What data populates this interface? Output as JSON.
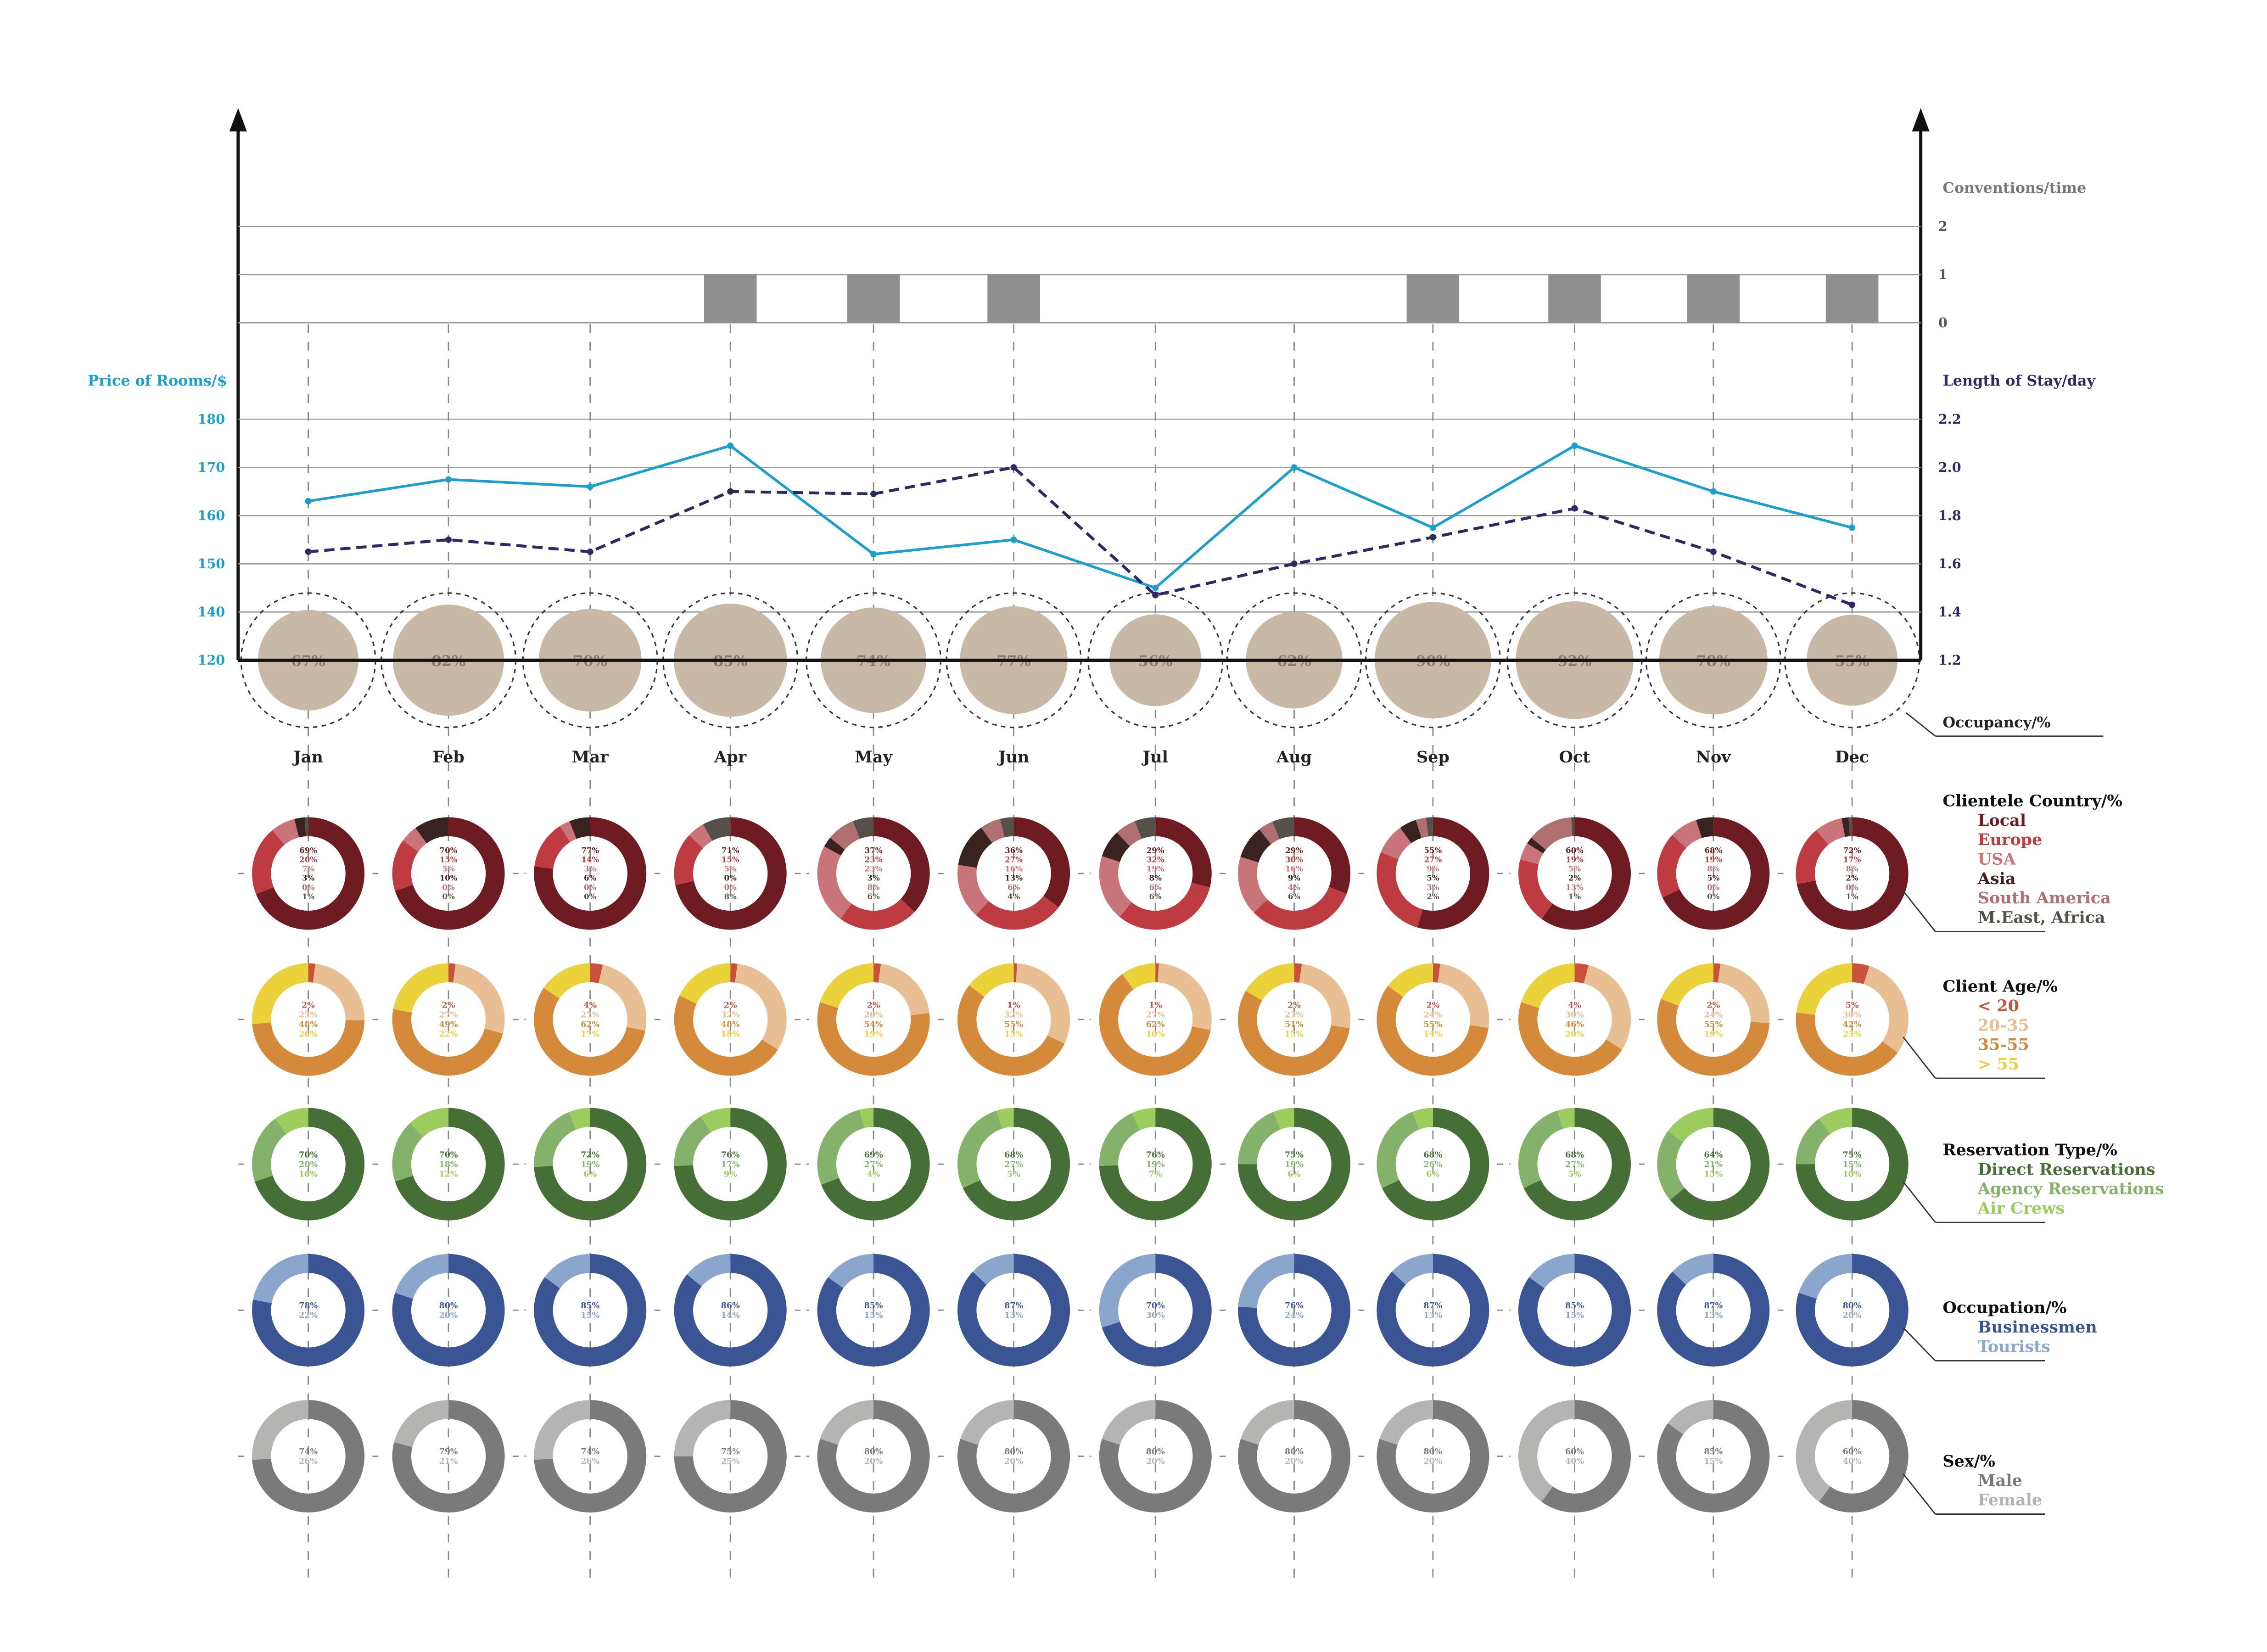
{
  "colors": {
    "price": "#1a9fcf",
    "stay": "#2a2a66",
    "conventions": "#8f8f8f",
    "occupancy": "#c8b9a6",
    "axis": "#111111",
    "label_gray": "#777777",
    "country": [
      "#6e1c22",
      "#bf3b42",
      "#c97479",
      "#3a2220",
      "#b07070",
      "#55504a"
    ],
    "age": [
      "#c9533a",
      "#e8bf92",
      "#d48a3a",
      "#ecd23a"
    ],
    "reservation": [
      "#466e37",
      "#84b26a",
      "#9ccc5e"
    ],
    "occupation": [
      "#3b5494",
      "#8aa6cc"
    ],
    "sex": [
      "#7a7a7a",
      "#b4b4b2"
    ]
  },
  "chart_data": {
    "type": "line",
    "categories": [
      "Jan",
      "Feb",
      "Mar",
      "Apr",
      "May",
      "Jun",
      "Jul",
      "Aug",
      "Sep",
      "Oct",
      "Nov",
      "Dec"
    ],
    "conventions": {
      "label": "Conventions/time",
      "ticks": [
        "2",
        "1",
        "0"
      ],
      "values": [
        0,
        0,
        0,
        1,
        1,
        1,
        0,
        0,
        1,
        1,
        1,
        1
      ]
    },
    "price": {
      "label": "Price of Rooms/$",
      "ticks": [
        "180",
        "170",
        "160",
        "150",
        "140",
        "120"
      ],
      "values": [
        163,
        167.5,
        166,
        174.5,
        152,
        155,
        145,
        170,
        157.5,
        174.5,
        165,
        157.5
      ]
    },
    "stay": {
      "label": "Length of Stay/day",
      "ticks": [
        "2.2",
        "2.0",
        "1.8",
        "1.6",
        "1.4",
        "1.2"
      ],
      "values": [
        1.65,
        1.7,
        1.65,
        1.9,
        1.89,
        2.0,
        1.47,
        1.6,
        1.71,
        1.83,
        1.65,
        1.43
      ]
    },
    "occupancy": {
      "label": "Occupancy/%",
      "values": [
        67,
        82,
        70,
        85,
        74,
        77,
        56,
        62,
        90,
        92,
        78,
        55
      ],
      "texts": [
        "67%",
        "82%",
        "70%",
        "85%",
        "74%",
        "77%",
        "56%",
        "62%",
        "90%",
        "92%",
        "78%",
        "55%"
      ]
    },
    "country": {
      "label": "Clientele Country/%",
      "legend": [
        "Local",
        "Europe",
        "USA",
        "Asia",
        "South America",
        "M.East, Africa"
      ],
      "values": [
        [
          69,
          20,
          7,
          3,
          0,
          1
        ],
        [
          70,
          15,
          5,
          10,
          0,
          0
        ],
        [
          77,
          14,
          3,
          6,
          0,
          0
        ],
        [
          71,
          15,
          5,
          0,
          0,
          8
        ],
        [
          37,
          23,
          23,
          3,
          8,
          6
        ],
        [
          36,
          27,
          16,
          13,
          6,
          4
        ],
        [
          29,
          32,
          19,
          8,
          6,
          6
        ],
        [
          29,
          30,
          16,
          9,
          4,
          6
        ],
        [
          55,
          27,
          9,
          5,
          3,
          2
        ],
        [
          60,
          19,
          5,
          2,
          13,
          1
        ],
        [
          68,
          19,
          8,
          5,
          0,
          0
        ],
        [
          72,
          17,
          8,
          2,
          0,
          1
        ]
      ],
      "texts": [
        [
          "69%",
          "20%",
          "7%",
          "3%",
          "0%",
          "1%"
        ],
        [
          "70%",
          "15%",
          "5%",
          "10%",
          "0%",
          "0%"
        ],
        [
          "77%",
          "14%",
          "3%",
          "6%",
          "0%",
          "0%"
        ],
        [
          "71%",
          "15%",
          "5%",
          "0%",
          "0%",
          "8%"
        ],
        [
          "37%",
          "23%",
          "23%",
          "3%",
          "8%",
          "6%"
        ],
        [
          "36%",
          "27%",
          "16%",
          "13%",
          "6%",
          "4%"
        ],
        [
          "29%",
          "32%",
          "19%",
          "8%",
          "6%",
          "6%"
        ],
        [
          "29%",
          "30%",
          "16%",
          "9%",
          "4%",
          "6%"
        ],
        [
          "55%",
          "27%",
          "9%",
          "5%",
          "3%",
          "2%"
        ],
        [
          "60%",
          "19%",
          "5%",
          "2%",
          "13%",
          "1%"
        ],
        [
          "68%",
          "19%",
          "8%",
          "5%",
          "0%",
          "0%"
        ],
        [
          "72%",
          "17%",
          "8%",
          "2%",
          "0%",
          "1%"
        ]
      ]
    },
    "age": {
      "label": "Client Age/%",
      "legend": [
        "< 20",
        "20-35",
        "35-55",
        "> 55"
      ],
      "values": [
        [
          2,
          23,
          48,
          26
        ],
        [
          2,
          27,
          49,
          22
        ],
        [
          4,
          27,
          62,
          17
        ],
        [
          2,
          32,
          48,
          18
        ],
        [
          2,
          20,
          54,
          19
        ],
        [
          1,
          32,
          55,
          15
        ],
        [
          1,
          27,
          62,
          10
        ],
        [
          2,
          23,
          51,
          15
        ],
        [
          2,
          24,
          55,
          14
        ],
        [
          4,
          30,
          46,
          20
        ],
        [
          2,
          24,
          55,
          19
        ],
        [
          5,
          30,
          42,
          23
        ]
      ],
      "texts": [
        [
          "2%",
          "23%",
          "48%",
          "26%"
        ],
        [
          "2%",
          "27%",
          "49%",
          "22%"
        ],
        [
          "4%",
          "27%",
          "62%",
          "17%"
        ],
        [
          "2%",
          "32%",
          "48%",
          "18%"
        ],
        [
          "2%",
          "20%",
          "54%",
          "19%"
        ],
        [
          "1%",
          "32%",
          "55%",
          "15%"
        ],
        [
          "1%",
          "27%",
          "62%",
          "10%"
        ],
        [
          "2%",
          "23%",
          "51%",
          "15%"
        ],
        [
          "2%",
          "24%",
          "55%",
          "14%"
        ],
        [
          "4%",
          "30%",
          "46%",
          "20%"
        ],
        [
          "2%",
          "24%",
          "55%",
          "19%"
        ],
        [
          "5%",
          "30%",
          "42%",
          "23%"
        ]
      ]
    },
    "reservation": {
      "label": "Reservation Type/%",
      "legend": [
        "Direct Reservations",
        "Agency Reservations",
        "Air Crews"
      ],
      "values": [
        [
          70,
          20,
          10
        ],
        [
          70,
          18,
          12
        ],
        [
          72,
          19,
          6
        ],
        [
          76,
          17,
          9
        ],
        [
          69,
          27,
          4
        ],
        [
          68,
          27,
          5
        ],
        [
          76,
          19,
          7
        ],
        [
          75,
          19,
          6
        ],
        [
          68,
          26,
          6
        ],
        [
          68,
          27,
          5
        ],
        [
          64,
          21,
          15
        ],
        [
          75,
          15,
          10
        ]
      ],
      "texts": [
        [
          "70%",
          "20%",
          "10%"
        ],
        [
          "70%",
          "18%",
          "12%"
        ],
        [
          "72%",
          "19%",
          "6%"
        ],
        [
          "76%",
          "17%",
          "9%"
        ],
        [
          "69%",
          "27%",
          "4%"
        ],
        [
          "68%",
          "27%",
          "5%"
        ],
        [
          "76%",
          "19%",
          "7%"
        ],
        [
          "75%",
          "19%",
          "6%"
        ],
        [
          "68%",
          "26%",
          "6%"
        ],
        [
          "68%",
          "27%",
          "5%"
        ],
        [
          "64%",
          "21%",
          "15%"
        ],
        [
          "75%",
          "15%",
          "10%"
        ]
      ]
    },
    "occupation": {
      "label": "Occupation/%",
      "legend": [
        "Businessmen",
        "Tourists"
      ],
      "values": [
        [
          78,
          22
        ],
        [
          80,
          20
        ],
        [
          85,
          15
        ],
        [
          86,
          14
        ],
        [
          85,
          15
        ],
        [
          87,
          13
        ],
        [
          70,
          30
        ],
        [
          76,
          24
        ],
        [
          87,
          13
        ],
        [
          85,
          15
        ],
        [
          87,
          13
        ],
        [
          80,
          20
        ]
      ],
      "texts": [
        [
          "78%",
          "22%"
        ],
        [
          "80%",
          "20%"
        ],
        [
          "85%",
          "15%"
        ],
        [
          "86%",
          "14%"
        ],
        [
          "85%",
          "15%"
        ],
        [
          "87%",
          "13%"
        ],
        [
          "70%",
          "30%"
        ],
        [
          "76%",
          "24%"
        ],
        [
          "87%",
          "13%"
        ],
        [
          "85%",
          "15%"
        ],
        [
          "87%",
          "13%"
        ],
        [
          "80%",
          "20%"
        ]
      ]
    },
    "sex": {
      "label": "Sex/%",
      "legend": [
        "Male",
        "Female"
      ],
      "values": [
        [
          74,
          26
        ],
        [
          79,
          21
        ],
        [
          74,
          26
        ],
        [
          75,
          25
        ],
        [
          80,
          20
        ],
        [
          80,
          20
        ],
        [
          80,
          20
        ],
        [
          80,
          20
        ],
        [
          80,
          20
        ],
        [
          60,
          40
        ],
        [
          85,
          15
        ],
        [
          60,
          40
        ]
      ],
      "texts": [
        [
          "74%",
          "26%"
        ],
        [
          "79%",
          "21%"
        ],
        [
          "74%",
          "26%"
        ],
        [
          "75%",
          "25%"
        ],
        [
          "80%",
          "20%"
        ],
        [
          "80%",
          "20%"
        ],
        [
          "80%",
          "20%"
        ],
        [
          "80%",
          "20%"
        ],
        [
          "80%",
          "20%"
        ],
        [
          "60%",
          "40%"
        ],
        [
          "85%",
          "15%"
        ],
        [
          "60%",
          "40%"
        ]
      ]
    }
  }
}
